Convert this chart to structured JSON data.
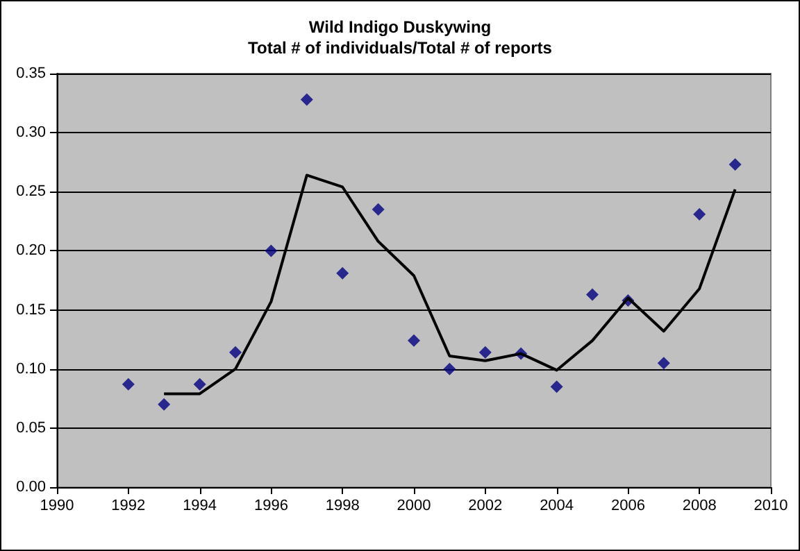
{
  "chart_data": {
    "type": "scatter",
    "title": "Wild Indigo Duskywing\nTotal # of individuals/Total # of reports",
    "series": [
      {
        "color": "#000080",
        "marker": "diamond",
        "x": [
          1992,
          1993,
          1994,
          1995,
          1996,
          1997,
          1998,
          1999,
          2000,
          2001,
          2002,
          2003,
          2004,
          2005,
          2006,
          2007,
          2008,
          2009
        ],
        "values": [
          0.087,
          0.07,
          0.087,
          0.114,
          0.2,
          0.328,
          0.181,
          0.235,
          0.124,
          0.1,
          0.114,
          0.113,
          0.085,
          0.163,
          0.158,
          0.105,
          0.231,
          0.273
        ]
      },
      {
        "type": "line",
        "color": "#000000",
        "marker": "none",
        "x": [
          1993,
          1994,
          1995,
          1996,
          1997,
          1998,
          1999,
          2000,
          2001,
          2002,
          2003,
          2004,
          2005,
          2006,
          2007,
          2008,
          2009
        ],
        "values": [
          0.079,
          0.079,
          0.1,
          0.157,
          0.264,
          0.254,
          0.208,
          0.179,
          0.111,
          0.107,
          0.113,
          0.099,
          0.124,
          0.16,
          0.132,
          0.168,
          0.252
        ]
      }
    ],
    "xlim": [
      1990,
      2010
    ],
    "xticks": [
      1990,
      1992,
      1994,
      1996,
      1998,
      2000,
      2002,
      2004,
      2006,
      2008,
      2010
    ],
    "ylim": [
      0,
      0.35
    ],
    "yticks": [
      {
        "value": 0,
        "label": "0.00"
      },
      0.05,
      {
        "value": 0.1,
        "label": "0.10"
      },
      0.15,
      {
        "value": 0.2,
        "label": "0.20"
      },
      0.25,
      {
        "value": 0.3,
        "label": "0.30"
      },
      0.35
    ],
    "grid": "y"
  }
}
